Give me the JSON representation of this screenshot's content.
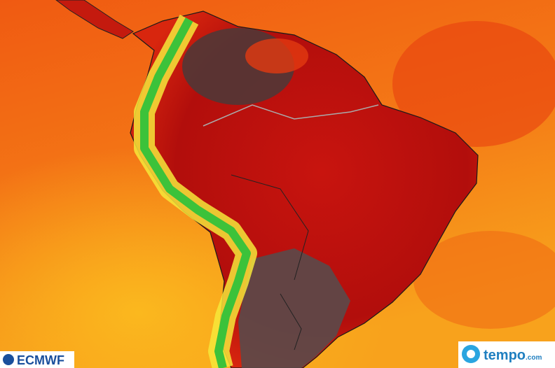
{
  "logos": {
    "left": "ECMWF",
    "right_name": "tempo",
    "right_suffix": ".com"
  }
}
